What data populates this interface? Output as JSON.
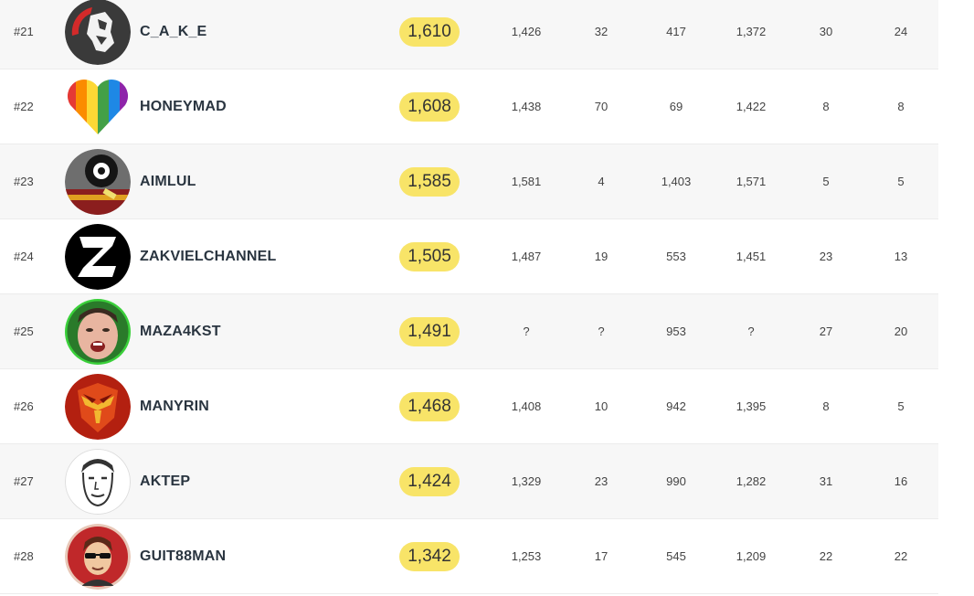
{
  "rows": [
    {
      "rank": "#21",
      "name": "C_A_K_E",
      "score": "1,610",
      "c1": "1,426",
      "c2": "32",
      "c3": "417",
      "c4": "1,372",
      "c5": "30",
      "c6": "24",
      "avatar_icon": "lion-icon"
    },
    {
      "rank": "#22",
      "name": "HONEYMAD",
      "score": "1,608",
      "c1": "1,438",
      "c2": "70",
      "c3": "69",
      "c4": "1,422",
      "c5": "8",
      "c6": "8",
      "avatar_icon": "rainbow-heart-icon"
    },
    {
      "rank": "#23",
      "name": "AIMLUL",
      "score": "1,585",
      "c1": "1,581",
      "c2": "4",
      "c3": "1,403",
      "c4": "1,571",
      "c5": "5",
      "c6": "5",
      "avatar_icon": "eye-character-icon"
    },
    {
      "rank": "#24",
      "name": "ZAKVIELCHANNEL",
      "score": "1,505",
      "c1": "1,487",
      "c2": "19",
      "c3": "553",
      "c4": "1,451",
      "c5": "23",
      "c6": "13",
      "avatar_icon": "z-logo-icon"
    },
    {
      "rank": "#25",
      "name": "MAZA4KST",
      "score": "1,491",
      "c1": "?",
      "c2": "?",
      "c3": "953",
      "c4": "?",
      "c5": "27",
      "c6": "20",
      "avatar_icon": "face-photo-icon"
    },
    {
      "rank": "#26",
      "name": "MANYRIN",
      "score": "1,468",
      "c1": "1,408",
      "c2": "10",
      "c3": "942",
      "c4": "1,395",
      "c5": "8",
      "c6": "5",
      "avatar_icon": "hero-helmet-icon"
    },
    {
      "rank": "#27",
      "name": "AKTEP",
      "score": "1,424",
      "c1": "1,329",
      "c2": "23",
      "c3": "990",
      "c4": "1,282",
      "c5": "31",
      "c6": "16",
      "avatar_icon": "sketch-face-icon"
    },
    {
      "rank": "#28",
      "name": "GUIT88MAN",
      "score": "1,342",
      "c1": "1,253",
      "c2": "17",
      "c3": "545",
      "c4": "1,209",
      "c5": "22",
      "c6": "22",
      "avatar_icon": "sunglasses-cartoon-icon"
    }
  ],
  "colors": {
    "score_badge": "#f8e468",
    "row_alt": "#f7f7f7",
    "name_text": "#2a3540"
  }
}
